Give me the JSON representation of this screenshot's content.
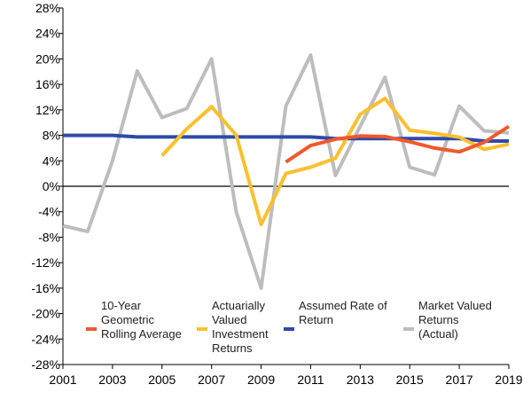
{
  "chart_data": {
    "type": "line",
    "title": "",
    "xlabel": "",
    "ylabel": "",
    "xlim": [
      2001,
      2019
    ],
    "ylim": [
      -28,
      28
    ],
    "x_ticks": [
      "2001",
      "2003",
      "2005",
      "2007",
      "2009",
      "2011",
      "2013",
      "2015",
      "2017",
      "2019"
    ],
    "y_ticks": [
      "28%",
      "24%",
      "20%",
      "16%",
      "12%",
      "8%",
      "4%",
      "0%",
      "-4%",
      "-8%",
      "-12%",
      "-16%",
      "-20%",
      "-24%",
      "-28%"
    ],
    "grid": false,
    "legend_position": "bottom-inside",
    "series": [
      {
        "name": "10-Year Geometric Rolling Average",
        "legend_lines": [
          "10-Year",
          "Geometric",
          "Rolling Average"
        ],
        "color": "#ef5a2d",
        "points": [
          [
            2010,
            3.8
          ],
          [
            2011,
            6.4
          ],
          [
            2012,
            7.4
          ],
          [
            2013,
            7.9
          ],
          [
            2014,
            7.8
          ],
          [
            2015,
            7.0
          ],
          [
            2016,
            6.0
          ],
          [
            2017,
            5.4
          ],
          [
            2018,
            6.9
          ],
          [
            2019,
            9.4
          ]
        ]
      },
      {
        "name": "Actuarially Valued Investment Returns",
        "legend_lines": [
          "Actuarially",
          "Valued",
          "Investment",
          "Returns"
        ],
        "color": "#fbc02d",
        "points": [
          [
            2005,
            4.8
          ],
          [
            2006,
            9.0
          ],
          [
            2007,
            12.5
          ],
          [
            2008,
            8.0
          ],
          [
            2009,
            -6.0
          ],
          [
            2010,
            2.0
          ],
          [
            2011,
            3.0
          ],
          [
            2012,
            4.4
          ],
          [
            2013,
            11.3
          ],
          [
            2014,
            13.8
          ],
          [
            2015,
            8.8
          ],
          [
            2016,
            8.3
          ],
          [
            2017,
            7.7
          ],
          [
            2018,
            5.8
          ],
          [
            2019,
            6.6
          ]
        ]
      },
      {
        "name": "Assumed Rate of Return",
        "legend_lines": [
          "Assumed Rate of",
          "Return"
        ],
        "color": "#2e4aa8",
        "points": [
          [
            2001,
            8.0
          ],
          [
            2002,
            8.0
          ],
          [
            2003,
            8.0
          ],
          [
            2004,
            7.75
          ],
          [
            2005,
            7.75
          ],
          [
            2006,
            7.75
          ],
          [
            2007,
            7.75
          ],
          [
            2008,
            7.75
          ],
          [
            2009,
            7.75
          ],
          [
            2010,
            7.75
          ],
          [
            2011,
            7.75
          ],
          [
            2012,
            7.5
          ],
          [
            2013,
            7.5
          ],
          [
            2014,
            7.5
          ],
          [
            2015,
            7.5
          ],
          [
            2016,
            7.5
          ],
          [
            2017,
            7.5
          ],
          [
            2018,
            7.1
          ],
          [
            2019,
            7.1
          ]
        ]
      },
      {
        "name": "Market Valued Returns (Actual)",
        "legend_lines": [
          "Market Valued",
          "Returns",
          "(Actual)"
        ],
        "color": "#bdbdbd",
        "points": [
          [
            2001,
            -6.2
          ],
          [
            2002,
            -7.1
          ],
          [
            2003,
            4.0
          ],
          [
            2004,
            18.1
          ],
          [
            2005,
            10.8
          ],
          [
            2006,
            12.2
          ],
          [
            2007,
            20.0
          ],
          [
            2008,
            -4.1
          ],
          [
            2009,
            -16.0
          ],
          [
            2010,
            12.6
          ],
          [
            2011,
            20.6
          ],
          [
            2012,
            1.7
          ],
          [
            2013,
            9.4
          ],
          [
            2014,
            17.1
          ],
          [
            2015,
            3.0
          ],
          [
            2016,
            1.8
          ],
          [
            2017,
            12.6
          ],
          [
            2018,
            8.7
          ],
          [
            2019,
            8.4
          ]
        ]
      }
    ]
  }
}
